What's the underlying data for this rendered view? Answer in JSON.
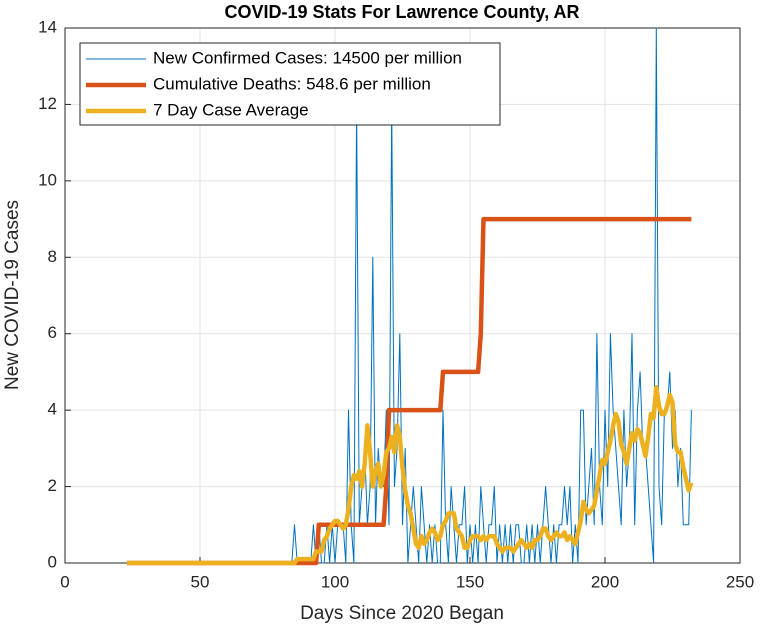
{
  "chart_data": {
    "type": "line",
    "title": "COVID-19 Stats For Lawrence County, AR",
    "x_label": "Days Since 2020 Began",
    "y_label": "New COVID-19 Cases",
    "x": [
      23,
      24,
      25,
      26,
      27,
      28,
      29,
      30,
      31,
      32,
      33,
      34,
      35,
      36,
      37,
      38,
      39,
      40,
      41,
      42,
      43,
      44,
      45,
      46,
      47,
      48,
      49,
      50,
      51,
      52,
      53,
      54,
      55,
      56,
      57,
      58,
      59,
      60,
      61,
      62,
      63,
      64,
      65,
      66,
      67,
      68,
      69,
      70,
      71,
      72,
      73,
      74,
      75,
      76,
      77,
      78,
      79,
      80,
      81,
      82,
      83,
      84,
      85,
      86,
      87,
      88,
      89,
      90,
      91,
      92,
      93,
      94,
      95,
      96,
      97,
      98,
      99,
      100,
      101,
      102,
      103,
      104,
      105,
      106,
      107,
      108,
      109,
      110,
      111,
      112,
      113,
      114,
      115,
      116,
      117,
      118,
      119,
      120,
      121,
      122,
      123,
      124,
      125,
      126,
      127,
      128,
      129,
      130,
      131,
      132,
      133,
      134,
      135,
      136,
      137,
      138,
      139,
      140,
      141,
      142,
      143,
      144,
      145,
      146,
      147,
      148,
      149,
      150,
      151,
      152,
      153,
      154,
      155,
      156,
      157,
      158,
      159,
      160,
      161,
      162,
      163,
      164,
      165,
      166,
      167,
      168,
      169,
      170,
      171,
      172,
      173,
      174,
      175,
      176,
      177,
      178,
      179,
      180,
      181,
      182,
      183,
      184,
      185,
      186,
      187,
      188,
      189,
      190,
      191,
      192,
      193,
      194,
      195,
      196,
      197,
      198,
      199,
      200,
      201,
      202,
      203,
      204,
      205,
      206,
      207,
      208,
      209,
      210,
      211,
      212,
      213,
      214,
      215,
      216,
      217,
      218,
      219,
      220,
      221,
      222,
      223,
      224,
      225,
      226,
      227,
      228,
      229,
      230,
      231,
      232
    ],
    "series": [
      {
        "name": "New Confirmed Cases: 14500 per million",
        "color": "#0072bd",
        "width": 1,
        "values": [
          0,
          0,
          0,
          0,
          0,
          0,
          0,
          0,
          0,
          0,
          0,
          0,
          0,
          0,
          0,
          0,
          0,
          0,
          0,
          0,
          0,
          0,
          0,
          0,
          0,
          0,
          0,
          0,
          0,
          0,
          0,
          0,
          0,
          0,
          0,
          0,
          0,
          0,
          0,
          0,
          0,
          0,
          0,
          0,
          0,
          0,
          0,
          0,
          0,
          0,
          0,
          0,
          0,
          0,
          0,
          0,
          0,
          0,
          0,
          0,
          0,
          0,
          1,
          0,
          0,
          0,
          0,
          0,
          0,
          1,
          0,
          1,
          0,
          0,
          1,
          0,
          1,
          0,
          1,
          1,
          1,
          0,
          4,
          1,
          0,
          12,
          1,
          2,
          3,
          1,
          2,
          8,
          1,
          3,
          2,
          2,
          4,
          1,
          12,
          2,
          3,
          6,
          1,
          3,
          0,
          1,
          2,
          1,
          0,
          2,
          1,
          0,
          1,
          0,
          1,
          0,
          0,
          4,
          1,
          0,
          2,
          1,
          0,
          1,
          1,
          2,
          0,
          1,
          0,
          1,
          0,
          2,
          1,
          0,
          1,
          1,
          2,
          0,
          1,
          0,
          1,
          0,
          1,
          0,
          1,
          1,
          0,
          0,
          1,
          0,
          1,
          0,
          1,
          0,
          1,
          2,
          1,
          0,
          1,
          0,
          1,
          1,
          2,
          1,
          2,
          0,
          1,
          0,
          4,
          4,
          1,
          2,
          3,
          1,
          6,
          2,
          1,
          4,
          2,
          6,
          4,
          3,
          2,
          1,
          4,
          2,
          3,
          6,
          1,
          4,
          5,
          3,
          3,
          2,
          1,
          0,
          14,
          2,
          1,
          4,
          4,
          5,
          3,
          4,
          2,
          3,
          1,
          1,
          1,
          4
        ]
      },
      {
        "name": "Cumulative Deaths: 548.6 per million",
        "color": "#d95319",
        "width": 4.5,
        "values": [
          0,
          0,
          0,
          0,
          0,
          0,
          0,
          0,
          0,
          0,
          0,
          0,
          0,
          0,
          0,
          0,
          0,
          0,
          0,
          0,
          0,
          0,
          0,
          0,
          0,
          0,
          0,
          0,
          0,
          0,
          0,
          0,
          0,
          0,
          0,
          0,
          0,
          0,
          0,
          0,
          0,
          0,
          0,
          0,
          0,
          0,
          0,
          0,
          0,
          0,
          0,
          0,
          0,
          0,
          0,
          0,
          0,
          0,
          0,
          0,
          0,
          0,
          0,
          0,
          0,
          0,
          0,
          0,
          0,
          0,
          0,
          1,
          1,
          1,
          1,
          1,
          1,
          1,
          1,
          1,
          1,
          1,
          1,
          1,
          1,
          1,
          1,
          1,
          1,
          1,
          1,
          1,
          1,
          1,
          1,
          1,
          2,
          4,
          4,
          4,
          4,
          4,
          4,
          4,
          4,
          4,
          4,
          4,
          4,
          4,
          4,
          4,
          4,
          4,
          4,
          4,
          4,
          5,
          5,
          5,
          5,
          5,
          5,
          5,
          5,
          5,
          5,
          5,
          5,
          5,
          5,
          6,
          9,
          9,
          9,
          9,
          9,
          9,
          9,
          9,
          9,
          9,
          9,
          9,
          9,
          9,
          9,
          9,
          9,
          9,
          9,
          9,
          9,
          9,
          9,
          9,
          9,
          9,
          9,
          9,
          9,
          9,
          9,
          9,
          9,
          9,
          9,
          9,
          9,
          9,
          9,
          9,
          9,
          9,
          9,
          9,
          9,
          9,
          9,
          9,
          9,
          9,
          9,
          9,
          9,
          9,
          9,
          9,
          9,
          9,
          9,
          9,
          9,
          9,
          9,
          9,
          9,
          9,
          9,
          9,
          9,
          9,
          9,
          9,
          9,
          9,
          9,
          9,
          9,
          9
        ]
      },
      {
        "name": "7 Day Case Average",
        "color": "#edb120",
        "width": 4.5,
        "values": [
          0,
          0,
          0,
          0,
          0,
          0,
          0,
          0,
          0,
          0,
          0,
          0,
          0,
          0,
          0,
          0,
          0,
          0,
          0,
          0,
          0,
          0,
          0,
          0,
          0,
          0,
          0,
          0,
          0,
          0,
          0,
          0,
          0,
          0,
          0,
          0,
          0,
          0,
          0,
          0,
          0,
          0,
          0,
          0,
          0,
          0,
          0,
          0,
          0,
          0,
          0,
          0,
          0,
          0,
          0,
          0,
          0,
          0,
          0,
          0,
          0,
          0,
          0,
          0.1,
          0.1,
          0.1,
          0.1,
          0.1,
          0.1,
          0.1,
          0.3,
          0.3,
          0.3,
          0.6,
          0.7,
          0.9,
          1.0,
          1.1,
          1.1,
          1.0,
          0.9,
          1.0,
          1.4,
          2.0,
          2.3,
          2.2,
          2.4,
          2.0,
          2.6,
          3.6,
          2.9,
          2.0,
          2.4,
          2.6,
          2.0,
          2.3,
          2.9,
          3.0,
          3.3,
          2.9,
          3.6,
          3.3,
          2.5,
          1.9,
          1.5,
          1.3,
          0.9,
          0.5,
          0.4,
          0.7,
          0.5,
          0.6,
          0.8,
          0.9,
          0.8,
          0.6,
          0.7,
          1.0,
          1.1,
          1.3,
          1.3,
          1.3,
          0.9,
          0.8,
          0.7,
          0.4,
          0.4,
          0.6,
          0.7,
          0.7,
          0.7,
          0.6,
          0.7,
          0.6,
          0.7,
          0.7,
          0.7,
          0.5,
          0.4,
          0.3,
          0.4,
          0.4,
          0.4,
          0.3,
          0.4,
          0.5,
          0.6,
          0.5,
          0.4,
          0.5,
          0.4,
          0.6,
          0.6,
          0.7,
          0.9,
          0.9,
          0.7,
          0.6,
          0.7,
          0.8,
          0.7,
          0.7,
          0.8,
          0.6,
          0.7,
          0.6,
          0.5,
          0.8,
          1.1,
          1.6,
          1.4,
          1.3,
          1.4,
          1.5,
          1.9,
          2.3,
          2.7,
          2.6,
          2.9,
          3.2,
          3.6,
          3.9,
          3.7,
          3.1,
          2.9,
          2.6,
          3.0,
          3.4,
          3.2,
          3.5,
          3.4,
          3.1,
          2.8,
          3.3,
          3.9,
          3.8,
          4.6,
          4.1,
          3.9,
          3.9,
          4.1,
          4.4,
          4.2,
          3.1,
          2.9,
          2.9,
          2.5,
          2.2,
          1.9,
          2.1
        ]
      }
    ],
    "xlim": [
      0,
      250
    ],
    "xticks": [
      0,
      50,
      100,
      150,
      200,
      250
    ],
    "ylim": [
      0,
      14
    ],
    "yticks": [
      0,
      2,
      4,
      6,
      8,
      10,
      12,
      14
    ],
    "grid": true,
    "legend": "upper left"
  }
}
